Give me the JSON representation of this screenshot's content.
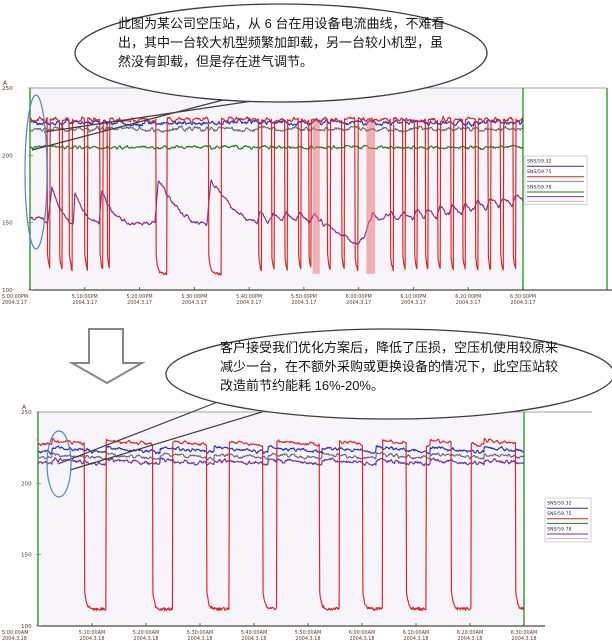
{
  "callouts": {
    "before": {
      "text": "此图为某公司空压站，从 6 台在用设备电流曲线，不难看出，其中一台较大机型频繁加卸载，另一台较小机型，虽然没有卸载，但是存在进气调节。"
    },
    "after": {
      "text": "客户接受我们优化方案后，降低了压损，空压机使用较原来减少一台，在不额外采购或更换设备的情况下，此空压站较改造前节约能耗 16%-20%。"
    }
  },
  "annotations": {
    "highlight_color": "#4d87c7",
    "bubble_border_color": "#3c3c3c",
    "arrow_outline_color": "#858585"
  },
  "chart_data": [
    {
      "type": "line",
      "name": "before-optimization-current-trend",
      "ylabel": "A",
      "ylim": [
        100,
        250
      ],
      "yticks": [
        250,
        200,
        150,
        100
      ],
      "x_span_minutes": 90,
      "xticks": {
        "times": [
          "5:00:00PM",
          "5:10:00PM",
          "5:20:00PM",
          "5:30:00PM",
          "5:40:00PM",
          "5:50:00PM",
          "6:00:00PM",
          "6:10:00PM",
          "6:20:00PM",
          "6:30:00PM"
        ],
        "date": "2004.3.17"
      },
      "grid": false,
      "legend_position": "right",
      "legend_rows": [
        {
          "text": "SNS/59.32"
        },
        {
          "line": "#2a2ac8"
        },
        {
          "text": "SNS/59.75"
        },
        {
          "line": "#d42222"
        },
        {
          "line": "#8a8a94"
        },
        {
          "text": "SNS/59.78"
        },
        {
          "line": "#1d7f1d"
        },
        {
          "line": "#8b2a8b"
        },
        {
          "line": "#b9b9c4"
        }
      ],
      "series": [
        {
          "name": "compressor-green-steady",
          "color": "#1e7d1e",
          "base": 206,
          "noise": 1.2
        },
        {
          "name": "compressor-gray",
          "color": "#6a6a78",
          "base": 219.5,
          "noise": 1.5,
          "wave": {
            "period": 15,
            "amplitude": 1.2,
            "offset": 4
          }
        },
        {
          "name": "compressor-blue",
          "color": "#2431c8",
          "base": 224.5,
          "noise": 1.8,
          "wave": {
            "period": 15,
            "amplitude": 1.4,
            "offset": 9
          }
        },
        {
          "name": "compressor-small-inlet-modulating-purple",
          "color": "#8b2a8b",
          "noise": 1.5,
          "keypoints": [
            [
              0,
              153
            ],
            [
              2.5,
              153
            ],
            [
              3.2,
              149
            ],
            [
              4.0,
              176
            ],
            [
              5.2,
              163
            ],
            [
              6.4,
              155
            ],
            [
              7.2,
              150
            ],
            [
              7.9,
              149
            ],
            [
              8.2,
              171
            ],
            [
              9.5,
              159
            ],
            [
              10.8,
              152
            ],
            [
              12.6,
              149
            ],
            [
              13.1,
              173
            ],
            [
              14.6,
              161
            ],
            [
              16.5,
              153
            ],
            [
              18.5,
              149
            ],
            [
              22.8,
              149
            ],
            [
              23.4,
              181
            ],
            [
              25.5,
              168
            ],
            [
              27.5,
              158
            ],
            [
              29.5,
              152
            ],
            [
              32.3,
              149
            ],
            [
              33.0,
              181
            ],
            [
              35.0,
              170
            ],
            [
              37.0,
              161
            ],
            [
              39.5,
              153
            ],
            [
              41.5,
              149
            ],
            [
              42.0,
              157
            ],
            [
              43.5,
              150
            ],
            [
              44.4,
              158
            ],
            [
              46.0,
              151
            ],
            [
              46.9,
              158
            ],
            [
              48.5,
              151
            ],
            [
              49.3,
              157
            ],
            [
              51.0,
              150
            ],
            [
              52.0,
              156
            ],
            [
              53.5,
              149
            ],
            [
              55.0,
              146
            ],
            [
              57.0,
              141
            ],
            [
              58.5,
              137
            ],
            [
              59.8,
              135
            ],
            [
              61.0,
              139
            ],
            [
              61.8,
              149
            ],
            [
              62.5,
              157
            ],
            [
              63.8,
              151
            ],
            [
              66.0,
              158
            ],
            [
              67.2,
              151
            ],
            [
              68.3,
              158
            ],
            [
              69.8,
              152
            ],
            [
              70.5,
              160
            ],
            [
              72.0,
              153
            ],
            [
              72.6,
              161
            ],
            [
              74.2,
              154
            ],
            [
              74.8,
              162
            ],
            [
              76.5,
              155
            ],
            [
              77.1,
              163
            ],
            [
              78.8,
              156
            ],
            [
              79.4,
              165
            ],
            [
              81.0,
              158
            ],
            [
              81.7,
              166
            ],
            [
              83.3,
              160
            ],
            [
              84.0,
              168
            ],
            [
              85.6,
              161
            ],
            [
              86.3,
              169
            ],
            [
              88.0,
              163
            ],
            [
              88.6,
              171
            ],
            [
              90,
              166
            ]
          ]
        },
        {
          "name": "compressor-large-frequent-unload-red",
          "color": "#d92525",
          "base": 226.5,
          "noise": 1.8,
          "unload_low": 112,
          "unloads": [
            [
              3.2,
              0.45
            ],
            [
              5.4,
              0.5
            ],
            [
              7.2,
              0.5
            ],
            [
              10.0,
              0.55
            ],
            [
              12.8,
              0.5
            ],
            [
              14.1,
              0.45
            ],
            [
              23.0,
              2.0
            ],
            [
              32.6,
              2.3
            ],
            [
              41.7,
              0.6
            ],
            [
              44.1,
              0.5
            ],
            [
              46.5,
              0.5
            ],
            [
              49.0,
              0.5
            ],
            [
              50.9,
              0.45
            ],
            [
              54.3,
              0.5
            ],
            [
              56.9,
              0.5
            ],
            [
              59.3,
              0.6
            ],
            [
              65.8,
              0.55
            ],
            [
              68.0,
              0.5
            ],
            [
              70.2,
              0.5
            ],
            [
              72.2,
              0.5
            ],
            [
              74.4,
              0.5
            ],
            [
              76.8,
              0.5
            ],
            [
              79.0,
              0.5
            ],
            [
              81.3,
              0.5
            ],
            [
              83.6,
              0.5
            ],
            [
              85.9,
              0.5
            ],
            [
              88.2,
              0.5
            ]
          ],
          "fast_cycle_bands": [
            [
              51.6,
              1.3
            ],
            [
              61.4,
              1.6
            ]
          ]
        }
      ]
    },
    {
      "type": "line",
      "name": "after-optimization-current-trend",
      "ylabel": "A",
      "ylim": [
        100,
        250
      ],
      "yticks": [
        250,
        200,
        150,
        100
      ],
      "x_span_minutes": 90,
      "xticks": {
        "times": [
          "5:00:00AM",
          "5:10:00AM",
          "5:20:00AM",
          "5:30:00AM",
          "5:40:00AM",
          "5:50:00AM",
          "6:00:00AM",
          "6:10:00AM",
          "6:20:00AM",
          "6:30:00AM"
        ],
        "date": "2004.3.18"
      },
      "grid": false,
      "legend_position": "right",
      "legend_rows": [
        {
          "text": "SNS/59.32"
        },
        {
          "line": "#2a2ac8"
        },
        {
          "text": "SNS/59.75"
        },
        {
          "line": "#d42222"
        },
        {
          "line": "#1d7f1d"
        },
        {
          "text": "SNS/59.78"
        },
        {
          "line": "#7a2f9e"
        },
        {
          "line": "#b9b9c4"
        }
      ],
      "series": [
        {
          "name": "compressor-gray",
          "color": "#6a6a78",
          "base": 219,
          "noise": 1.2,
          "wave": {
            "period": 10,
            "amplitude": 3.0,
            "offset": 7.4
          }
        },
        {
          "name": "compressor-purple",
          "color": "#7a2f9e",
          "base": 215,
          "noise": 1.4,
          "wave": {
            "period": 10,
            "amplitude": 3.2,
            "offset": 7.4
          }
        },
        {
          "name": "compressor-blue",
          "color": "#2431c8",
          "base": 223.5,
          "noise": 1.2,
          "wave": {
            "period": 10,
            "amplitude": 3.5,
            "offset": 7.4
          }
        },
        {
          "name": "compressor-red-periodic-unload",
          "color": "#d92525",
          "base": 228.5,
          "noise": 1.2,
          "wave": {
            "period": 10,
            "amplitude": 3.5,
            "offset": 7.4
          },
          "unload_low": 112,
          "unloads": [
            [
              8.6,
              4.0
            ],
            [
              21.2,
              3.7
            ],
            [
              31.2,
              4.2
            ],
            [
              41.6,
              2.6
            ],
            [
              52.1,
              3.7
            ],
            [
              60.1,
              3.7
            ],
            [
              68.2,
              3.7
            ],
            [
              76.5,
              3.7
            ],
            [
              88.4,
              1.6
            ]
          ]
        }
      ]
    }
  ]
}
